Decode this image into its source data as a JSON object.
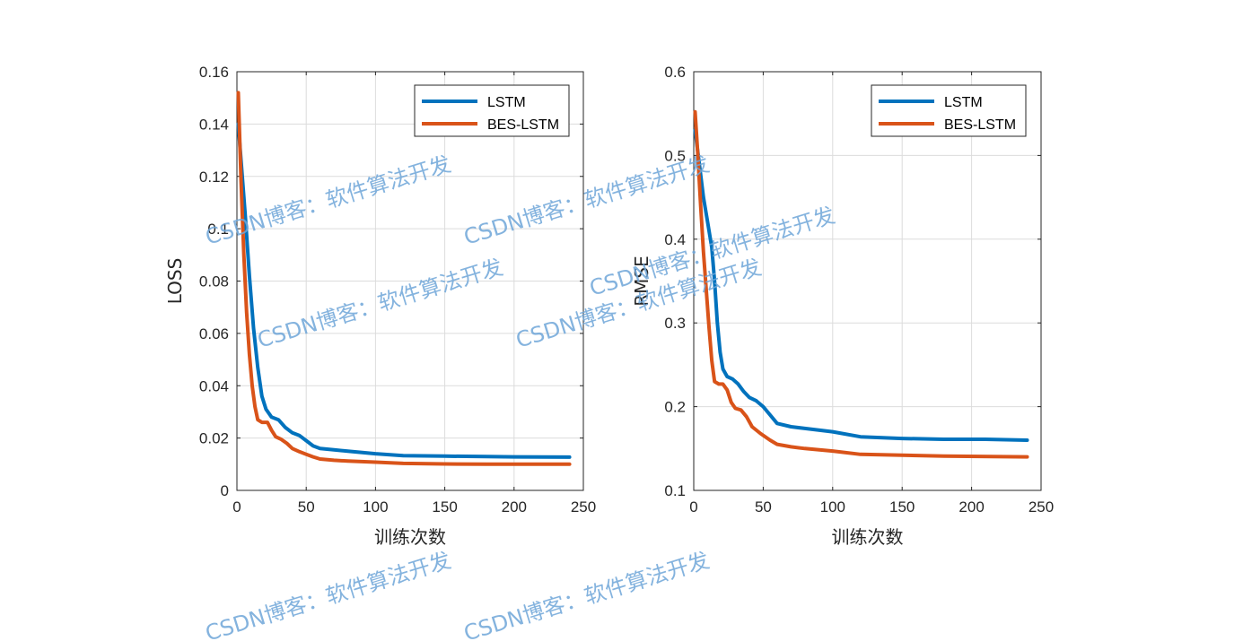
{
  "chart_data": [
    {
      "type": "line",
      "xlabel": "训练次数",
      "ylabel": "LOSS",
      "xlim": [
        0,
        250
      ],
      "ylim": [
        0,
        0.16
      ],
      "xticks": [
        "0",
        "50",
        "100",
        "150",
        "200",
        "250"
      ],
      "yticks": [
        "0",
        "0.02",
        "0.04",
        "0.06",
        "0.08",
        "0.1",
        "0.12",
        "0.14",
        "0.16"
      ],
      "grid": true,
      "legend_position": "top-right",
      "series": [
        {
          "name": "LSTM",
          "color": "#0072BD",
          "points": [
            [
              1,
              0.14
            ],
            [
              3,
              0.126
            ],
            [
              6,
              0.105
            ],
            [
              9,
              0.082
            ],
            [
              12,
              0.062
            ],
            [
              15,
              0.047
            ],
            [
              18,
              0.036
            ],
            [
              21,
              0.031
            ],
            [
              25,
              0.028
            ],
            [
              30,
              0.027
            ],
            [
              35,
              0.024
            ],
            [
              40,
              0.022
            ],
            [
              45,
              0.021
            ],
            [
              50,
              0.019
            ],
            [
              55,
              0.017
            ],
            [
              60,
              0.016
            ],
            [
              70,
              0.0155
            ],
            [
              80,
              0.015
            ],
            [
              100,
              0.014
            ],
            [
              120,
              0.0133
            ],
            [
              150,
              0.0131
            ],
            [
              180,
              0.0129
            ],
            [
              200,
              0.0128
            ],
            [
              240,
              0.0127
            ]
          ]
        },
        {
          "name": "BES-LSTM",
          "color": "#D95319",
          "points": [
            [
              1,
              0.152
            ],
            [
              3,
              0.118
            ],
            [
              5,
              0.09
            ],
            [
              7,
              0.068
            ],
            [
              9,
              0.052
            ],
            [
              11,
              0.04
            ],
            [
              13,
              0.032
            ],
            [
              15,
              0.027
            ],
            [
              18,
              0.026
            ],
            [
              22,
              0.026
            ],
            [
              25,
              0.023
            ],
            [
              28,
              0.0205
            ],
            [
              32,
              0.0195
            ],
            [
              36,
              0.018
            ],
            [
              40,
              0.016
            ],
            [
              45,
              0.0148
            ],
            [
              50,
              0.0138
            ],
            [
              55,
              0.0128
            ],
            [
              60,
              0.012
            ],
            [
              70,
              0.0115
            ],
            [
              80,
              0.0112
            ],
            [
              100,
              0.0108
            ],
            [
              120,
              0.0103
            ],
            [
              150,
              0.0101
            ],
            [
              180,
              0.01
            ],
            [
              240,
              0.01
            ]
          ]
        }
      ]
    },
    {
      "type": "line",
      "xlabel": "训练次数",
      "ylabel": "RMSE",
      "xlim": [
        0,
        250
      ],
      "ylim": [
        0.1,
        0.6
      ],
      "xticks": [
        "0",
        "50",
        "100",
        "150",
        "200",
        "250"
      ],
      "yticks": [
        "0.1",
        "0.2",
        "0.3",
        "0.4",
        "0.5",
        "0.6"
      ],
      "grid": true,
      "legend_position": "top-right",
      "series": [
        {
          "name": "LSTM",
          "color": "#0072BD",
          "points": [
            [
              1,
              0.53
            ],
            [
              4,
              0.49
            ],
            [
              7,
              0.45
            ],
            [
              10,
              0.42
            ],
            [
              13,
              0.39
            ],
            [
              15,
              0.35
            ],
            [
              17,
              0.3
            ],
            [
              19,
              0.265
            ],
            [
              21,
              0.245
            ],
            [
              24,
              0.236
            ],
            [
              28,
              0.233
            ],
            [
              32,
              0.227
            ],
            [
              36,
              0.218
            ],
            [
              40,
              0.211
            ],
            [
              45,
              0.207
            ],
            [
              50,
              0.2
            ],
            [
              55,
              0.19
            ],
            [
              60,
              0.18
            ],
            [
              70,
              0.176
            ],
            [
              80,
              0.174
            ],
            [
              100,
              0.17
            ],
            [
              120,
              0.164
            ],
            [
              150,
              0.162
            ],
            [
              180,
              0.161
            ],
            [
              210,
              0.161
            ],
            [
              240,
              0.16
            ]
          ]
        },
        {
          "name": "BES-LSTM",
          "color": "#D95319",
          "points": [
            [
              1,
              0.552
            ],
            [
              3,
              0.5
            ],
            [
              5,
              0.44
            ],
            [
              7,
              0.385
            ],
            [
              9,
              0.34
            ],
            [
              11,
              0.295
            ],
            [
              13,
              0.255
            ],
            [
              15,
              0.23
            ],
            [
              18,
              0.227
            ],
            [
              21,
              0.227
            ],
            [
              24,
              0.22
            ],
            [
              27,
              0.205
            ],
            [
              30,
              0.198
            ],
            [
              34,
              0.196
            ],
            [
              38,
              0.188
            ],
            [
              42,
              0.176
            ],
            [
              48,
              0.168
            ],
            [
              55,
              0.16
            ],
            [
              60,
              0.155
            ],
            [
              70,
              0.152
            ],
            [
              80,
              0.15
            ],
            [
              100,
              0.147
            ],
            [
              120,
              0.143
            ],
            [
              150,
              0.142
            ],
            [
              180,
              0.141
            ],
            [
              240,
              0.14
            ]
          ]
        }
      ]
    }
  ],
  "watermarks": [
    "CSDN博客：软件算法开发",
    "CSDN博客：软件算法开发",
    "CSDN博客：软件算法开发",
    "CSDN博客：软件算法开发",
    "CSDN博客：软件算法开发",
    "CSDN博客：软件算法开发",
    "CSDN博客：软件算法开发"
  ]
}
